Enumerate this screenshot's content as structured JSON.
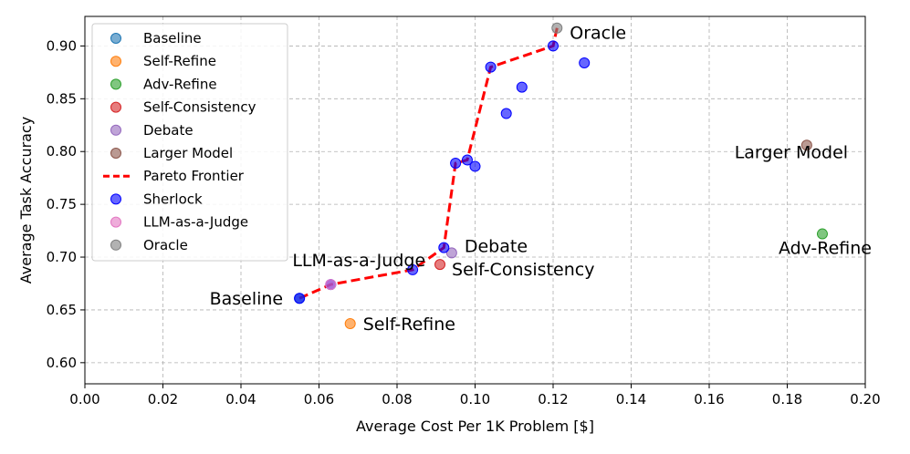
{
  "chart_data": {
    "type": "scatter",
    "xlabel": "Average Cost Per 1K Problem [$]",
    "ylabel": "Average Task Accuracy",
    "xlim": [
      0.0,
      0.2
    ],
    "ylim": [
      0.58,
      0.928
    ],
    "xticks": [
      "0.00",
      "0.02",
      "0.04",
      "0.06",
      "0.08",
      "0.10",
      "0.12",
      "0.14",
      "0.16",
      "0.18",
      "0.20"
    ],
    "yticks": [
      "0.60",
      "0.65",
      "0.70",
      "0.75",
      "0.80",
      "0.85",
      "0.90"
    ],
    "grid": true,
    "legend_position": "top-left",
    "series": [
      {
        "name": "Baseline",
        "color": "#1f77b4",
        "points": [
          {
            "x": 0.055,
            "y": 0.661
          }
        ]
      },
      {
        "name": "Self-Refine",
        "color": "#ff7f0e",
        "points": [
          {
            "x": 0.068,
            "y": 0.637
          }
        ]
      },
      {
        "name": "Adv-Refine",
        "color": "#2ca02c",
        "points": [
          {
            "x": 0.189,
            "y": 0.722
          }
        ]
      },
      {
        "name": "Self-Consistency",
        "color": "#d62728",
        "points": [
          {
            "x": 0.091,
            "y": 0.693
          }
        ]
      },
      {
        "name": "Debate",
        "color": "#9467bd",
        "points": [
          {
            "x": 0.094,
            "y": 0.704
          }
        ]
      },
      {
        "name": "Larger Model",
        "color": "#8c564b",
        "points": [
          {
            "x": 0.185,
            "y": 0.806
          }
        ]
      },
      {
        "name": "Sherlock",
        "color": "#0000ff",
        "points": [
          {
            "x": 0.055,
            "y": 0.661
          },
          {
            "x": 0.063,
            "y": 0.674
          },
          {
            "x": 0.084,
            "y": 0.688
          },
          {
            "x": 0.092,
            "y": 0.709
          },
          {
            "x": 0.095,
            "y": 0.789
          },
          {
            "x": 0.098,
            "y": 0.792
          },
          {
            "x": 0.1,
            "y": 0.786
          },
          {
            "x": 0.104,
            "y": 0.88
          },
          {
            "x": 0.108,
            "y": 0.836
          },
          {
            "x": 0.112,
            "y": 0.861
          },
          {
            "x": 0.12,
            "y": 0.9
          },
          {
            "x": 0.128,
            "y": 0.884
          }
        ]
      },
      {
        "name": "LLM-as-a-Judge",
        "color": "#e377c2",
        "points": [
          {
            "x": 0.063,
            "y": 0.674
          }
        ]
      },
      {
        "name": "Oracle",
        "color": "#7f7f7f",
        "points": [
          {
            "x": 0.121,
            "y": 0.917
          }
        ]
      }
    ],
    "pareto_frontier": {
      "name": "Pareto Frontier",
      "color": "#ff0000",
      "points": [
        {
          "x": 0.055,
          "y": 0.661
        },
        {
          "x": 0.063,
          "y": 0.674
        },
        {
          "x": 0.084,
          "y": 0.688
        },
        {
          "x": 0.092,
          "y": 0.709
        },
        {
          "x": 0.095,
          "y": 0.789
        },
        {
          "x": 0.098,
          "y": 0.792
        },
        {
          "x": 0.104,
          "y": 0.88
        },
        {
          "x": 0.12,
          "y": 0.9
        },
        {
          "x": 0.121,
          "y": 0.917
        }
      ]
    },
    "legend_order": [
      "Baseline",
      "Self-Refine",
      "Adv-Refine",
      "Self-Consistency",
      "Debate",
      "Larger Model",
      "Pareto Frontier",
      "Sherlock",
      "LLM-as-a-Judge",
      "Oracle"
    ],
    "annotations": [
      {
        "text": "Baseline",
        "x": 0.055,
        "y": 0.661,
        "anchor": "end",
        "dx": -18,
        "dy": 7
      },
      {
        "text": "Self-Refine",
        "x": 0.068,
        "y": 0.637,
        "anchor": "start",
        "dx": 14,
        "dy": 7
      },
      {
        "text": "LLM-as-a-Judge",
        "x": 0.063,
        "y": 0.674,
        "anchor": "start",
        "dx": -42,
        "dy": -20
      },
      {
        "text": "Self-Consistency",
        "x": 0.091,
        "y": 0.693,
        "anchor": "start",
        "dx": 13,
        "dy": 12
      },
      {
        "text": "Debate",
        "x": 0.094,
        "y": 0.704,
        "anchor": "start",
        "dx": 14,
        "dy": -1
      },
      {
        "text": "Oracle",
        "x": 0.121,
        "y": 0.917,
        "anchor": "start",
        "dx": 14,
        "dy": 12
      },
      {
        "text": "Larger Model",
        "x": 0.185,
        "y": 0.806,
        "anchor": "middle",
        "dx": -17,
        "dy": 14
      },
      {
        "text": "Adv-Refine",
        "x": 0.189,
        "y": 0.722,
        "anchor": "middle",
        "dx": 3,
        "dy": 22
      }
    ]
  }
}
